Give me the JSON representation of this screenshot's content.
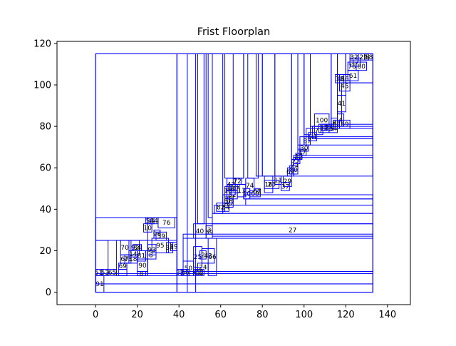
{
  "chart_data": {
    "type": "floorplan",
    "title": "Frist Floorplan",
    "xlabel": "",
    "ylabel": "",
    "xlim": [
      -18.5,
      151
    ],
    "ylim": [
      -6,
      121
    ],
    "xticks": [
      0,
      20,
      40,
      60,
      80,
      100,
      120,
      140
    ],
    "yticks": [
      0,
      20,
      40,
      60,
      80,
      100,
      120
    ],
    "grid": false,
    "edge_color": "#0000ff",
    "rects": [
      {
        "x": 0,
        "y": 0,
        "w": 133,
        "h": 115
      },
      {
        "x": 0,
        "y": 0,
        "w": 133,
        "h": 4,
        "label": ""
      },
      {
        "x": 0,
        "y": 0,
        "w": 4,
        "h": 8,
        "label": "91"
      },
      {
        "x": 0,
        "y": 4,
        "w": 133,
        "h": 5
      },
      {
        "x": 0,
        "y": 0,
        "w": 39,
        "h": 115
      },
      {
        "x": 0,
        "y": 8,
        "w": 6,
        "h": 17
      },
      {
        "x": 0,
        "y": 8,
        "w": 3,
        "h": 3,
        "label": "51"
      },
      {
        "x": 3,
        "y": 8,
        "w": 3,
        "h": 3,
        "label": "53"
      },
      {
        "x": 6,
        "y": 8,
        "w": 4,
        "h": 3,
        "label": "65"
      },
      {
        "x": 0,
        "y": 25,
        "w": 39,
        "h": 11
      },
      {
        "x": 10,
        "y": 8,
        "w": 15,
        "h": 17
      },
      {
        "x": 11,
        "y": 8,
        "w": 4,
        "h": 3
      },
      {
        "x": 11,
        "y": 11,
        "w": 4,
        "h": 3,
        "label": "69"
      },
      {
        "x": 12,
        "y": 14,
        "w": 4,
        "h": 4,
        "label": "67"
      },
      {
        "x": 12,
        "y": 18,
        "w": 4,
        "h": 7,
        "label": "70"
      },
      {
        "x": 14,
        "y": 14,
        "w": 3,
        "h": 4,
        "label": "73"
      },
      {
        "x": 16,
        "y": 14,
        "w": 4,
        "h": 4,
        "label": "18"
      },
      {
        "x": 17,
        "y": 18,
        "w": 4,
        "h": 7,
        "label": "92"
      },
      {
        "x": 16,
        "y": 17,
        "w": 4,
        "h": 3,
        "label": "14"
      },
      {
        "x": 18,
        "y": 20,
        "w": 4,
        "h": 3,
        "label": "34"
      },
      {
        "x": 20,
        "y": 15,
        "w": 4,
        "h": 5,
        "label": "81"
      },
      {
        "x": 20,
        "y": 8,
        "w": 4,
        "h": 2,
        "label": "8"
      },
      {
        "x": 20,
        "y": 10,
        "w": 5,
        "h": 6,
        "label": "90"
      },
      {
        "x": 24,
        "y": 16,
        "w": 5,
        "h": 4,
        "label": "8"
      },
      {
        "x": 25,
        "y": 8,
        "w": 14,
        "h": 28
      },
      {
        "x": 25,
        "y": 18,
        "w": 4,
        "h": 5,
        "label": "93"
      },
      {
        "x": 27,
        "y": 19,
        "w": 8,
        "h": 7,
        "label": "95"
      },
      {
        "x": 28,
        "y": 26,
        "w": 3,
        "h": 4,
        "label": "96"
      },
      {
        "x": 29,
        "y": 25,
        "w": 5,
        "h": 4,
        "label": "59"
      },
      {
        "x": 23,
        "y": 29,
        "w": 4,
        "h": 4,
        "label": "10"
      },
      {
        "x": 24,
        "y": 33,
        "w": 4,
        "h": 3,
        "label": "58"
      },
      {
        "x": 26,
        "y": 33,
        "w": 4,
        "h": 3,
        "label": "44"
      },
      {
        "x": 30,
        "y": 31,
        "w": 8,
        "h": 5,
        "label": "76"
      },
      {
        "x": 34,
        "y": 19,
        "w": 3,
        "h": 5,
        "label": "34"
      },
      {
        "x": 36,
        "y": 20,
        "w": 3,
        "h": 4,
        "label": "19"
      },
      {
        "x": 39,
        "y": 8,
        "w": 3,
        "h": 3,
        "label": "37"
      },
      {
        "x": 41,
        "y": 8,
        "w": 4,
        "h": 3,
        "label": "66"
      },
      {
        "x": 39,
        "y": 0,
        "w": 94,
        "h": 115
      },
      {
        "x": 42,
        "y": 8,
        "w": 5,
        "h": 7,
        "label": "50"
      },
      {
        "x": 47,
        "y": 8,
        "w": 4,
        "h": 3,
        "label": "62"
      },
      {
        "x": 48,
        "y": 8,
        "w": 4,
        "h": 3,
        "label": "52"
      },
      {
        "x": 49,
        "y": 10,
        "w": 5,
        "h": 4,
        "label": "24"
      },
      {
        "x": 47,
        "y": 12,
        "w": 4,
        "h": 10,
        "label": "25"
      },
      {
        "x": 50,
        "y": 16,
        "w": 3,
        "h": 4,
        "label": "2"
      },
      {
        "x": 51,
        "y": 14,
        "w": 6,
        "h": 7,
        "label": "43"
      },
      {
        "x": 54,
        "y": 8,
        "w": 4,
        "h": 18,
        "label": "66"
      },
      {
        "x": 47,
        "y": 26,
        "w": 6,
        "h": 7,
        "label": "40"
      },
      {
        "x": 53,
        "y": 26,
        "w": 3,
        "h": 6,
        "label": "39"
      },
      {
        "x": 53,
        "y": 28,
        "w": 3,
        "h": 4,
        "label": "3"
      },
      {
        "x": 56,
        "y": 27,
        "w": 77,
        "h": 6,
        "label": "27"
      },
      {
        "x": 42,
        "y": 10,
        "w": 91,
        "h": 16
      },
      {
        "x": 42,
        "y": 26,
        "w": 91,
        "h": 2
      },
      {
        "x": 44,
        "y": 0,
        "w": 4,
        "h": 115
      },
      {
        "x": 49,
        "y": 33,
        "w": 3,
        "h": 82
      },
      {
        "x": 53,
        "y": 33,
        "w": 3,
        "h": 82
      },
      {
        "x": 54,
        "y": 36,
        "w": 2,
        "h": 79
      },
      {
        "x": 56,
        "y": 33,
        "w": 77,
        "h": 5
      },
      {
        "x": 57,
        "y": 38,
        "w": 76,
        "h": 4
      },
      {
        "x": 56,
        "y": 38,
        "w": 5,
        "h": 77
      },
      {
        "x": 58,
        "y": 39,
        "w": 4,
        "h": 4,
        "label": "82"
      },
      {
        "x": 61,
        "y": 39,
        "w": 3,
        "h": 4,
        "label": "84"
      },
      {
        "x": 62,
        "y": 41,
        "w": 4,
        "h": 4,
        "label": "49"
      },
      {
        "x": 61,
        "y": 43,
        "w": 3,
        "h": 4,
        "label": "8"
      },
      {
        "x": 62,
        "y": 43,
        "w": 4,
        "h": 4,
        "label": "78"
      },
      {
        "x": 63,
        "y": 45,
        "w": 5,
        "h": 4,
        "label": "52"
      },
      {
        "x": 62,
        "y": 47,
        "w": 3,
        "h": 4,
        "label": "16"
      },
      {
        "x": 63,
        "y": 47,
        "w": 4,
        "h": 5,
        "label": "86"
      },
      {
        "x": 65,
        "y": 48,
        "w": 4,
        "h": 4,
        "label": "77"
      },
      {
        "x": 63,
        "y": 49,
        "w": 4,
        "h": 6,
        "label": "42"
      },
      {
        "x": 66,
        "y": 52,
        "w": 4,
        "h": 3,
        "label": "72"
      },
      {
        "x": 62,
        "y": 55,
        "w": 9,
        "h": 60
      },
      {
        "x": 66,
        "y": 55,
        "w": 5,
        "h": 60
      },
      {
        "x": 68,
        "y": 46,
        "w": 4,
        "h": 6,
        "label": "13"
      },
      {
        "x": 71,
        "y": 45,
        "w": 3,
        "h": 5,
        "label": "10"
      },
      {
        "x": 72,
        "y": 48,
        "w": 4,
        "h": 7,
        "label": "74"
      },
      {
        "x": 74,
        "y": 46,
        "w": 5,
        "h": 3,
        "label": "68"
      },
      {
        "x": 76,
        "y": 47,
        "w": 3,
        "h": 3,
        "label": "67"
      },
      {
        "x": 72,
        "y": 42,
        "w": 61,
        "h": 3
      },
      {
        "x": 71,
        "y": 45,
        "w": 62,
        "h": 2
      },
      {
        "x": 73,
        "y": 55,
        "w": 5,
        "h": 60
      },
      {
        "x": 77,
        "y": 56,
        "w": 3,
        "h": 59
      },
      {
        "x": 80,
        "y": 56,
        "w": 6,
        "h": 59
      },
      {
        "x": 81,
        "y": 48,
        "w": 4,
        "h": 8,
        "label": "16"
      },
      {
        "x": 81,
        "y": 50,
        "w": 7,
        "h": 4,
        "label": "23"
      },
      {
        "x": 86,
        "y": 52,
        "w": 3,
        "h": 4,
        "label": "11"
      },
      {
        "x": 89,
        "y": 49,
        "w": 4,
        "h": 4,
        "label": "37"
      },
      {
        "x": 90,
        "y": 51,
        "w": 4,
        "h": 5,
        "label": "29"
      },
      {
        "x": 92,
        "y": 56,
        "w": 3,
        "h": 4,
        "label": "62"
      },
      {
        "x": 93,
        "y": 57,
        "w": 4,
        "h": 4,
        "label": "80"
      },
      {
        "x": 94,
        "y": 59,
        "w": 3,
        "h": 5,
        "label": "75"
      },
      {
        "x": 95,
        "y": 62,
        "w": 3,
        "h": 4,
        "label": "77"
      },
      {
        "x": 96,
        "y": 64,
        "w": 3,
        "h": 3,
        "label": "12"
      },
      {
        "x": 97,
        "y": 66,
        "w": 4,
        "h": 3,
        "label": "37"
      },
      {
        "x": 98,
        "y": 68,
        "w": 4,
        "h": 3,
        "label": "30"
      },
      {
        "x": 100,
        "y": 71,
        "w": 3,
        "h": 4,
        "label": "87"
      },
      {
        "x": 102,
        "y": 73,
        "w": 4,
        "h": 4,
        "label": "64"
      },
      {
        "x": 105,
        "y": 76,
        "w": 4,
        "h": 4,
        "label": "71"
      },
      {
        "x": 107,
        "y": 77,
        "w": 5,
        "h": 4,
        "label": "13"
      },
      {
        "x": 108,
        "y": 78,
        "w": 3,
        "h": 3,
        "label": "83"
      },
      {
        "x": 105,
        "y": 80,
        "w": 7,
        "h": 6,
        "label": "100"
      },
      {
        "x": 110,
        "y": 78,
        "w": 4,
        "h": 3,
        "label": "23"
      },
      {
        "x": 112,
        "y": 77,
        "w": 4,
        "h": 4,
        "label": "54"
      },
      {
        "x": 113,
        "y": 80,
        "w": 3,
        "h": 4,
        "label": "9"
      },
      {
        "x": 114,
        "y": 79,
        "w": 3,
        "h": 4,
        "label": "62"
      },
      {
        "x": 116,
        "y": 80,
        "w": 3,
        "h": 6,
        "label": "4"
      },
      {
        "x": 117,
        "y": 79,
        "w": 5,
        "h": 4,
        "label": "69"
      },
      {
        "x": 116,
        "y": 87,
        "w": 4,
        "h": 8,
        "label": "41"
      },
      {
        "x": 117,
        "y": 97,
        "w": 5,
        "h": 5,
        "label": "45"
      },
      {
        "x": 115,
        "y": 101,
        "w": 4,
        "h": 4,
        "label": "38"
      },
      {
        "x": 117,
        "y": 101,
        "w": 5,
        "h": 4,
        "label": "86"
      },
      {
        "x": 121,
        "y": 102,
        "w": 5,
        "h": 5,
        "label": "61"
      },
      {
        "x": 121,
        "y": 107,
        "w": 4,
        "h": 4,
        "label": "76"
      },
      {
        "x": 122,
        "y": 109,
        "w": 5,
        "h": 4,
        "label": "17"
      },
      {
        "x": 122,
        "y": 112,
        "w": 4,
        "h": 3,
        "label": "32"
      },
      {
        "x": 125,
        "y": 107,
        "w": 5,
        "h": 4,
        "label": "80"
      },
      {
        "x": 126,
        "y": 112,
        "w": 5,
        "h": 3,
        "label": "29"
      },
      {
        "x": 129,
        "y": 112,
        "w": 4,
        "h": 3,
        "label": "58"
      },
      {
        "x": 86,
        "y": 56,
        "w": 8,
        "h": 59
      },
      {
        "x": 94,
        "y": 64,
        "w": 3,
        "h": 51
      },
      {
        "x": 97,
        "y": 71,
        "w": 3,
        "h": 44
      },
      {
        "x": 100,
        "y": 76,
        "w": 3,
        "h": 39
      },
      {
        "x": 103,
        "y": 80,
        "w": 10,
        "h": 35
      },
      {
        "x": 113,
        "y": 80,
        "w": 3,
        "h": 35
      },
      {
        "x": 116,
        "y": 95,
        "w": 4,
        "h": 20
      },
      {
        "x": 120,
        "y": 101,
        "w": 13,
        "h": 14
      },
      {
        "x": 95,
        "y": 56,
        "w": 38,
        "h": 9
      },
      {
        "x": 98,
        "y": 66,
        "w": 35,
        "h": 9
      },
      {
        "x": 101,
        "y": 71,
        "w": 32,
        "h": 8
      },
      {
        "x": 104,
        "y": 74,
        "w": 29,
        "h": 6
      },
      {
        "x": 118,
        "y": 81,
        "w": 15,
        "h": 20
      }
    ]
  }
}
